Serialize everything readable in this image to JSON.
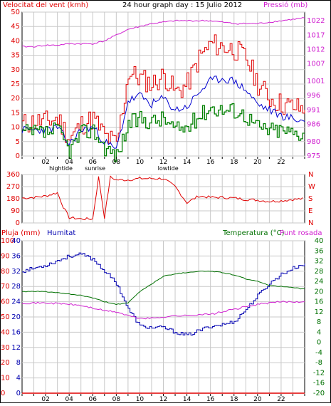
{
  "colors": {
    "wind": "#e00000",
    "pressure": "#d020d0",
    "humidity": "#0000b0",
    "temperature": "#007000",
    "dewpoint": "#d020d0",
    "rain": "#e00000",
    "gust": "#e00000",
    "avg": "#0000d0",
    "min": "#008000",
    "winddir": "#e00000",
    "grid": "#c8c8c8",
    "frame": "#000000"
  },
  "header": {
    "wind_label": "Velocitat del vent (kmh)",
    "title": "24 hour graph day : 15 Julio 2012",
    "pressure_label": "Pressió (mb)"
  },
  "panel3_header": {
    "rain_label": "Pluja (mm)",
    "humidity_label": "Humitat",
    "temp_label": "Temperatura (°C)",
    "dew_label": "Punt rosada"
  },
  "x_axis": {
    "hours": [
      "02",
      "04",
      "06",
      "08",
      "10",
      "12",
      "14",
      "16",
      "18",
      "20",
      "22"
    ],
    "events": [
      "hightide",
      "sunrise",
      "lowtide"
    ]
  },
  "chart_data": [
    {
      "type": "line",
      "title": "24 hour graph day : 15 Julio 2012",
      "ylabel": "Velocitat del vent (kmh)",
      "y2label": "Pressió (mb)",
      "ylim": [
        0,
        50
      ],
      "y2lim": [
        975,
        1025
      ],
      "yticks": [
        0,
        5,
        10,
        15,
        20,
        25,
        30,
        35,
        40,
        45,
        50
      ],
      "y2ticks": [
        975,
        980,
        986,
        991,
        996,
        1001,
        1007,
        1012,
        1017,
        1022
      ],
      "x": [
        0,
        1,
        2,
        3,
        4,
        5,
        6,
        7,
        8,
        9,
        10,
        11,
        12,
        13,
        14,
        15,
        16,
        17,
        18,
        19,
        20,
        21,
        22,
        23,
        24
      ],
      "series": [
        {
          "name": "gust",
          "values": [
            11,
            12,
            12,
            13,
            6,
            11,
            13,
            7,
            4,
            29,
            27,
            25,
            28,
            22,
            25,
            34,
            39,
            38,
            37,
            34,
            25,
            20,
            18,
            17,
            16
          ]
        },
        {
          "name": "average",
          "values": [
            9,
            9,
            9,
            10,
            4,
            9,
            10,
            5,
            2,
            19,
            21,
            18,
            20,
            16,
            17,
            22,
            26,
            27,
            26,
            23,
            18,
            16,
            14,
            13,
            12
          ]
        },
        {
          "name": "minimum",
          "values": [
            8,
            8,
            8,
            9,
            2,
            8,
            9,
            3,
            0,
            11,
            13,
            12,
            13,
            9,
            10,
            14,
            17,
            16,
            16,
            14,
            10,
            9,
            9,
            8,
            8
          ]
        },
        {
          "name": "pressure",
          "values": [
            1013,
            1013,
            1013.5,
            1013.5,
            1014,
            1014,
            1014,
            1015,
            1017,
            1019,
            1020,
            1021,
            1021.5,
            1022,
            1022,
            1022,
            1022,
            1021.5,
            1021,
            1021,
            1021,
            1021.5,
            1022,
            1022.5,
            1023
          ]
        }
      ]
    },
    {
      "type": "line",
      "ylim": [
        0,
        360
      ],
      "yticks": [
        0,
        90,
        180,
        270,
        360
      ],
      "compass": [
        "N",
        "W",
        "S",
        "E",
        "N"
      ],
      "x": [
        0,
        1,
        2,
        3,
        3.5,
        4,
        5,
        6,
        6.5,
        7,
        7.5,
        8,
        9,
        10,
        11,
        12,
        13,
        14,
        15,
        16,
        17,
        18,
        19,
        20,
        21,
        22,
        23,
        24
      ],
      "series": [
        {
          "name": "wind direction",
          "values": [
            185,
            190,
            200,
            225,
            120,
            40,
            30,
            30,
            340,
            40,
            340,
            320,
            320,
            330,
            330,
            330,
            270,
            150,
            200,
            190,
            190,
            185,
            175,
            170,
            160,
            165,
            175,
            180
          ]
        }
      ]
    },
    {
      "type": "line",
      "ylabel": "Pluja (mm)",
      "y2label": "Temperatura (°C)",
      "ylim": [
        0,
        100
      ],
      "y2lim": [
        -20,
        40
      ],
      "yticks_left_a": [
        0,
        10,
        20,
        30,
        40,
        50,
        60,
        70,
        80,
        90,
        100
      ],
      "yticks_left_b": [
        0,
        4,
        8,
        12,
        16,
        20,
        24,
        28,
        32,
        36,
        40
      ],
      "yticks_right": [
        -20,
        -16,
        -12,
        -8,
        -4,
        0,
        4,
        8,
        12,
        16,
        20,
        24,
        28,
        32,
        36,
        40
      ],
      "x": [
        0,
        1,
        2,
        3,
        4,
        5,
        6,
        7,
        8,
        9,
        10,
        11,
        12,
        13,
        14,
        15,
        16,
        17,
        18,
        19,
        20,
        21,
        22,
        23,
        24
      ],
      "series": [
        {
          "name": "Humitat",
          "values": [
            80,
            82,
            84,
            87,
            90,
            91,
            88,
            80,
            72,
            55,
            44,
            43,
            43,
            40,
            38,
            41,
            44,
            45,
            47,
            55,
            64,
            72,
            78,
            82,
            85
          ]
        },
        {
          "name": "Temperatura",
          "values": [
            20,
            20,
            20,
            19.5,
            19,
            18.5,
            17.5,
            16,
            15,
            15.5,
            20,
            23,
            26,
            27,
            27.5,
            28,
            28,
            27.5,
            26.5,
            25,
            24,
            22.5,
            22,
            21.5,
            21
          ]
        },
        {
          "name": "Punt rosada",
          "values": [
            15.5,
            15.5,
            15.5,
            15.3,
            15,
            14.5,
            13.5,
            12.5,
            12,
            10.5,
            9.5,
            9.5,
            10,
            10.5,
            10.5,
            11,
            11,
            12,
            13,
            14,
            15,
            15.5,
            16,
            16,
            16
          ]
        },
        {
          "name": "Pluja",
          "values": [
            0,
            0,
            0,
            0,
            0,
            0,
            0,
            0,
            0,
            0,
            0,
            0,
            0,
            0,
            0,
            0,
            0,
            0,
            0,
            0,
            0,
            0,
            0,
            0,
            0
          ]
        }
      ]
    }
  ]
}
